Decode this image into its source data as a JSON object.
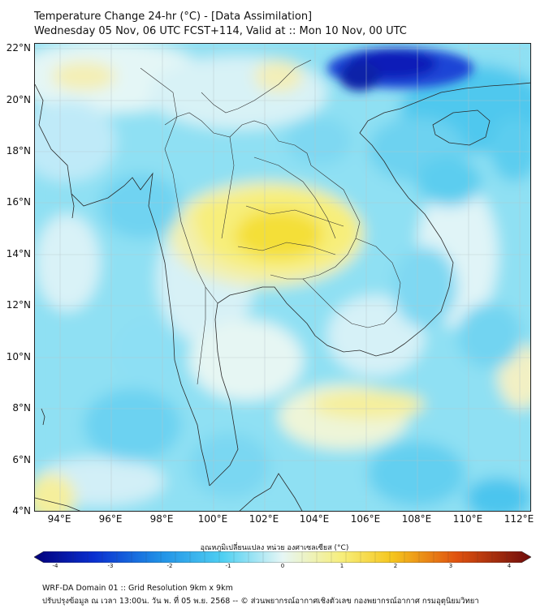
{
  "header": {
    "title": "Temperature Change 24-hr (°C) - [Data Assimilation]",
    "subtitle": "Wednesday 05 Nov, 06 UTC FCST+114, Valid at :: Mon 10 Nov, 00 UTC"
  },
  "map": {
    "lat_labels": [
      "22°N",
      "20°N",
      "18°N",
      "16°N",
      "14°N",
      "12°N",
      "10°N",
      "8°N",
      "6°N",
      "4°N"
    ],
    "lon_labels": [
      "94°E",
      "96°E",
      "98°E",
      "100°E",
      "102°E",
      "104°E",
      "106°E",
      "108°E",
      "110°E",
      "112°E"
    ],
    "lon_range": [
      93,
      112.5
    ],
    "lat_range": [
      4,
      22.2
    ],
    "colors": {
      "background_cyan": "#8fe0f3",
      "light": "#cdeefa",
      "pale": "#e9f6f7",
      "yellow": "#f7ee7a",
      "deep_yellow": "#f3dc2a",
      "blue": "#3ec2ec",
      "dark_blue": "#0a1fb8"
    }
  },
  "colorbar": {
    "title": "อุณหภูมิเปลี่ยนแปลง หน่วย องศาเซลเซียส (°C)",
    "labels": [
      "-4",
      "-3",
      "-2",
      "-1",
      "0",
      "1",
      "2",
      "3",
      "4"
    ],
    "range": [
      -4,
      4
    ]
  },
  "footer": {
    "line1": "WRF-DA Domain 01 :: Grid Resolution 9km x 9km",
    "line2": "ปรับปรุงข้อมูล ณ เวลา 13:00น. วัน พ. ที่ 05 พ.ย. 2568 -- © ส่วนพยากรณ์อากาศเชิงตัวเลข กองพยากรณ์อากาศ กรมอุตุนิยมวิทยา"
  }
}
